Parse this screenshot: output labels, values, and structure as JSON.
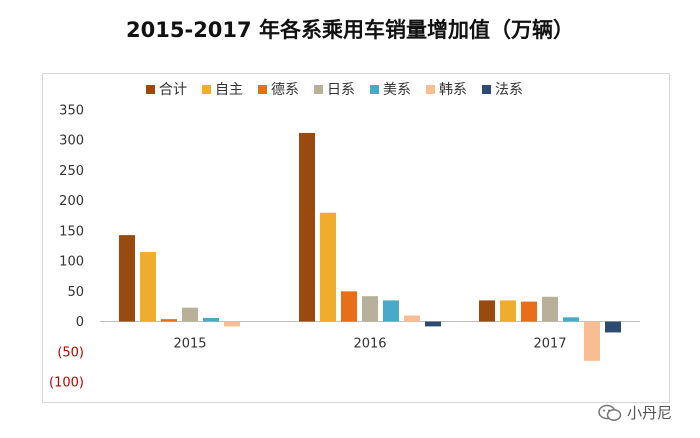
{
  "title": "2015-2017 年各系乘用车销量增加值（万辆）",
  "watermark": {
    "icon": "wechat-icon",
    "text": "小丹尼"
  },
  "chart_data": {
    "type": "bar",
    "categories": [
      "2015",
      "2016",
      "2017"
    ],
    "series": [
      {
        "name": "合计",
        "color": "#994a0e",
        "values": [
          143,
          312,
          35
        ]
      },
      {
        "name": "自主",
        "color": "#f0ac2c",
        "values": [
          115,
          180,
          35
        ]
      },
      {
        "name": "德系",
        "color": "#e86e17",
        "values": [
          4,
          50,
          33
        ]
      },
      {
        "name": "日系",
        "color": "#b9b09a",
        "values": [
          23,
          42,
          41
        ]
      },
      {
        "name": "美系",
        "color": "#48a9c9",
        "values": [
          6,
          35,
          7
        ]
      },
      {
        "name": "韩系",
        "color": "#f8bd93",
        "values": [
          -8,
          10,
          -65
        ]
      },
      {
        "name": "法系",
        "color": "#2f4a70",
        "values": [
          0,
          -8,
          -18
        ]
      }
    ],
    "y_ticks": [
      {
        "value": 350,
        "label": "350"
      },
      {
        "value": 300,
        "label": "300"
      },
      {
        "value": 250,
        "label": "250"
      },
      {
        "value": 200,
        "label": "200"
      },
      {
        "value": 150,
        "label": "150"
      },
      {
        "value": 100,
        "label": "100"
      },
      {
        "value": 50,
        "label": "50"
      },
      {
        "value": 0,
        "label": "0"
      },
      {
        "value": -50,
        "label": "(50)"
      },
      {
        "value": -100,
        "label": "(100)"
      }
    ],
    "negative_tick_color": "#c00000",
    "ylim": [
      -100,
      350
    ],
    "legend_position": "top",
    "grid": false
  }
}
